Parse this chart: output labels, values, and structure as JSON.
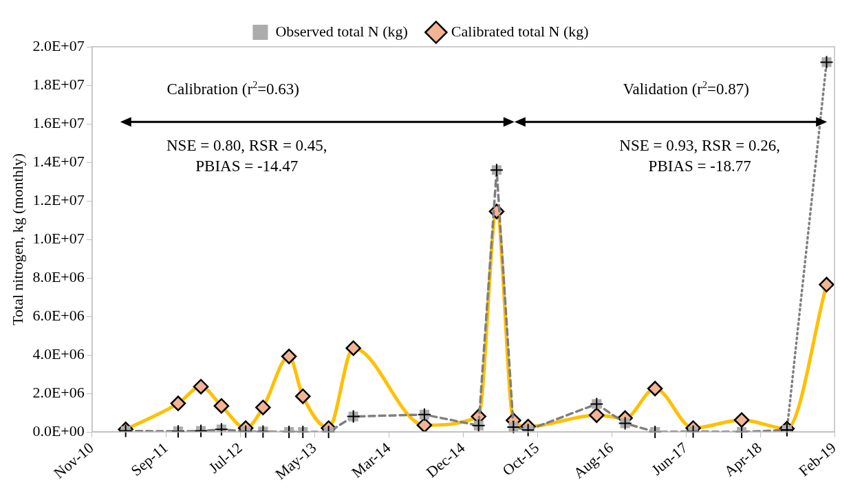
{
  "chart_data": {
    "type": "line",
    "ylabel": "Total nitrogen, kg (monthly)",
    "x": [
      "2011-04-05",
      "2011-11-03",
      "2012-02-03",
      "2012-04-26",
      "2012-08-02",
      "2012-10-11",
      "2013-01-24",
      "2013-03-21",
      "2013-07-03",
      "2013-10-11",
      "2014-07-25",
      "2015-03-01",
      "2015-05-13",
      "2015-07-20",
      "2015-09-17",
      "2016-06-20",
      "2016-10-13",
      "2017-02-11",
      "2017-07-15",
      "2018-01-27",
      "2018-07-29",
      "2019-01-05"
    ],
    "series": [
      {
        "name": "Observed total N (kg)",
        "color": "#7f7f7f",
        "line_style": "dashed",
        "marker": "cross",
        "x": [
          "2011-04-05",
          "2011-11-03",
          "2012-02-03",
          "2012-04-26",
          "2012-08-02",
          "2012-10-11",
          "2013-01-24",
          "2013-03-21",
          "2013-07-03",
          "2013-10-11",
          "2014-07-25",
          "2015-03-01",
          "2015-05-13",
          "2015-07-20",
          "2015-09-17",
          "2016-06-20",
          "2016-10-13",
          "2017-02-11",
          "2017-07-15",
          "2018-01-27",
          "2018-07-29"
        ],
        "values": [
          50000,
          30000,
          50000,
          130000,
          20000,
          20000,
          0,
          0,
          0,
          800000,
          900000,
          330000,
          13600000,
          250000,
          100000,
          1450000,
          450000,
          0,
          20000,
          0,
          100000
        ]
      },
      {
        "name": "Calibrated total N (kg)",
        "color": "#ffc000",
        "line_style": "solid",
        "marker": "diamond",
        "values": [
          130000,
          1480000,
          2350000,
          1350000,
          200000,
          1270000,
          3920000,
          1850000,
          200000,
          4350000,
          350000,
          800000,
          11450000,
          600000,
          280000,
          870000,
          720000,
          2250000,
          200000,
          620000,
          170000,
          7650000
        ]
      },
      {
        "color": "#7f7f7f",
        "line_style": "dotted",
        "marker": "cross",
        "x": [
          "2018-07-29",
          "2019-01-05"
        ],
        "values": [
          100000,
          19200000
        ]
      }
    ],
    "xlim": [
      "2010-11-20",
      "2019-02-06"
    ],
    "xticks": [
      {
        "value": "2010-11-20",
        "label": "Nov-10"
      },
      {
        "value": "2011-09-16",
        "label": "Sep-11"
      },
      {
        "value": "2012-07-12",
        "label": "Jul-12"
      },
      {
        "value": "2013-05-08",
        "label": "May-13"
      },
      {
        "value": "2014-03-04",
        "label": "Mar-14"
      },
      {
        "value": "2014-12-29",
        "label": "Dec-14"
      },
      {
        "value": "2015-10-25",
        "label": "Oct-15"
      },
      {
        "value": "2016-08-20",
        "label": "Aug-16"
      },
      {
        "value": "2017-06-16",
        "label": "Jun-17"
      },
      {
        "value": "2018-04-12",
        "label": "Apr-18"
      },
      {
        "value": "2019-02-06",
        "label": "Feb-19"
      }
    ],
    "ylim": [
      0,
      20000000
    ],
    "yticks": [
      {
        "value": 0,
        "label": "0.0E+00"
      },
      {
        "value": 2000000,
        "label": "2.0E+06"
      },
      {
        "value": 4000000,
        "label": "4.0E+06"
      },
      {
        "value": 6000000,
        "label": "6.0E+06"
      },
      {
        "value": 8000000,
        "label": "8.0E+06"
      },
      {
        "value": 10000000,
        "label": "1.0E+07"
      },
      {
        "value": 12000000,
        "label": "1.2E+07"
      },
      {
        "value": 14000000,
        "label": "1.4E+07"
      },
      {
        "value": 16000000,
        "label": "1.6E+07"
      },
      {
        "value": 18000000,
        "label": "1.8E+07"
      },
      {
        "value": 20000000,
        "label": "2.0E+07"
      }
    ],
    "annotations": [
      "Calibration (r$^{2}$=0.63)",
      "NSE = 0.80, RSR = 0.45,\nPBIAS = -14.47",
      "Validation (r$^{2}$=0.87)",
      "NSE = 0.93, RSR = 0.26,\nPBIAS = -18.77"
    ],
    "grid": false,
    "legend": "top"
  }
}
